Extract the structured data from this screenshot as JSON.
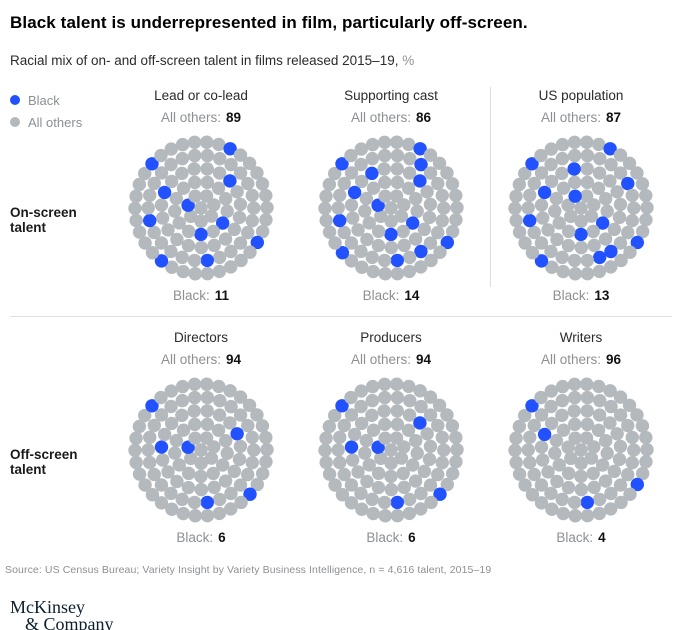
{
  "title": "Black talent is underrepresented in film, particularly off-screen.",
  "subtitle": {
    "text": "Racial mix of on- and off-screen talent in films released 2015–19,",
    "suffix": "%"
  },
  "colors": {
    "black": "#2251ff",
    "others": "#b4b9be",
    "divider": "#e0e0e0"
  },
  "legend": [
    {
      "label": "Black",
      "color": "#2251ff"
    },
    {
      "label": "All others",
      "color": "#b4b9be"
    }
  ],
  "rows": [
    {
      "label": "On-screen talent",
      "groups": [
        {
          "name": "Lead or co-lead",
          "others_label": "All others:",
          "others": "89",
          "black_label": "Black:",
          "black": "11",
          "blue_indices": [
            6,
            12,
            14,
            23,
            36,
            52,
            58,
            68,
            77,
            86,
            95
          ]
        },
        {
          "name": "Supporting cast",
          "others_label": "All others:",
          "others": "86",
          "black_label": "Black:",
          "black": "14",
          "blue_indices": [
            6,
            12,
            14,
            23,
            36,
            38,
            42,
            50,
            52,
            58,
            68,
            77,
            87,
            95
          ]
        },
        {
          "name": "US population",
          "others_label": "All others:",
          "others": "87",
          "black_label": "Black:",
          "black": "13",
          "blue_indices": [
            7,
            12,
            14,
            36,
            39,
            44,
            50,
            51,
            58,
            68,
            77,
            86,
            95
          ]
        }
      ]
    },
    {
      "label": "Off-screen talent",
      "groups": [
        {
          "name": "Directors",
          "others_label": "All others:",
          "others": "94",
          "black_label": "Black:",
          "black": "6",
          "blue_indices": [
            6,
            24,
            35,
            52,
            78,
            95
          ]
        },
        {
          "name": "Producers",
          "others_label": "All others:",
          "others": "94",
          "black_label": "Black:",
          "black": "6",
          "blue_indices": [
            6,
            23,
            35,
            52,
            78,
            95
          ]
        },
        {
          "name": "Writers",
          "others_label": "All others:",
          "others": "96",
          "black_label": "Black:",
          "black": "4",
          "blue_indices": [
            36,
            52,
            77,
            95
          ]
        }
      ]
    }
  ],
  "source": "Source: US Census Bureau; Variety Insight by Variety Business Intelligence, n = 4,616 talent, 2015–19",
  "logo": {
    "line1": "McKinsey",
    "line2": "& Company"
  },
  "chart_data": {
    "type": "table",
    "title": "Black talent is underrepresented in film, particularly off-screen.",
    "subtitle": "Racial mix of on- and off-screen talent in films released 2015–19, %",
    "unit": "%",
    "dots_per_category": 100,
    "categories": [
      "Lead or co-lead",
      "Supporting cast",
      "US population",
      "Directors",
      "Producers",
      "Writers"
    ],
    "category_groups": [
      "On-screen talent",
      "On-screen talent",
      "On-screen talent",
      "Off-screen talent",
      "Off-screen talent",
      "Off-screen talent"
    ],
    "series": [
      {
        "name": "Black",
        "color": "#2251ff",
        "values": [
          11,
          14,
          13,
          6,
          6,
          4
        ]
      },
      {
        "name": "All others",
        "color": "#b4b9be",
        "values": [
          89,
          86,
          87,
          94,
          94,
          96
        ]
      }
    ],
    "legend_position": "top-left",
    "source": "Source: US Census Bureau; Variety Insight by Variety Business Intelligence, n = 4,616 talent, 2015–19"
  }
}
